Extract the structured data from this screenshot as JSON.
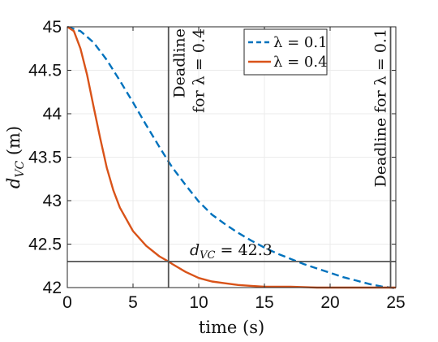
{
  "chart_data": {
    "type": "line",
    "title": "",
    "xlabel": "time (s)",
    "ylabel": "d",
    "ylabel_sub": "VC",
    "ylabel_unit": " (m)",
    "xlim": [
      0,
      25
    ],
    "ylim": [
      42,
      45
    ],
    "xticks": [
      0,
      5,
      10,
      15,
      20,
      25
    ],
    "yticks": [
      42,
      42.5,
      43,
      43.5,
      44,
      44.5,
      45
    ],
    "xtick_labels": [
      "0",
      "5",
      "10",
      "15",
      "20",
      "25"
    ],
    "ytick_labels": [
      "42",
      "42.5",
      "43",
      "43.5",
      "44",
      "44.5",
      "45"
    ],
    "grid": true,
    "legend_position": "top-right",
    "series": [
      {
        "name": "λ = 0.1",
        "color": "#0072BD",
        "style": "dashed",
        "x": [
          0,
          1,
          2,
          3,
          4,
          5,
          6,
          7,
          7.7,
          8,
          9,
          10,
          11,
          12,
          13,
          14,
          15,
          16,
          17,
          18,
          19,
          20,
          21,
          22,
          23,
          24,
          24.6,
          25
        ],
        "y": [
          45,
          44.95,
          44.82,
          44.62,
          44.38,
          44.13,
          43.87,
          43.62,
          43.45,
          43.38,
          43.18,
          42.99,
          42.84,
          42.73,
          42.63,
          42.54,
          42.46,
          42.39,
          42.33,
          42.27,
          42.22,
          42.17,
          42.12,
          42.08,
          42.04,
          42.01,
          42.0,
          41.99
        ]
      },
      {
        "name": "λ = 0.4",
        "color": "#D95319",
        "style": "solid",
        "x": [
          0,
          0.5,
          1,
          1.5,
          2,
          2.5,
          3,
          3.5,
          4,
          5,
          6,
          7,
          7.7,
          8,
          9,
          10,
          11,
          12,
          13,
          14,
          15,
          17,
          19,
          21,
          23,
          25
        ],
        "y": [
          45,
          44.95,
          44.75,
          44.45,
          44.08,
          43.72,
          43.38,
          43.12,
          42.92,
          42.65,
          42.48,
          42.36,
          42.3,
          42.27,
          42.18,
          42.11,
          42.07,
          42.05,
          42.03,
          42.02,
          42.01,
          42.01,
          42.0,
          42.0,
          42.0,
          42.0
        ]
      }
    ],
    "reference_lines": [
      {
        "orientation": "vertical",
        "x": 7.7,
        "label_line1": "Deadline",
        "label_line2": "for λ = 0.4"
      },
      {
        "orientation": "vertical",
        "x": 24.6,
        "label": "Deadline for λ = 0.1"
      },
      {
        "orientation": "horizontal",
        "y": 42.3,
        "label_var": "d",
        "label_sub": "VC",
        "label_value": " = 42.3"
      }
    ]
  }
}
